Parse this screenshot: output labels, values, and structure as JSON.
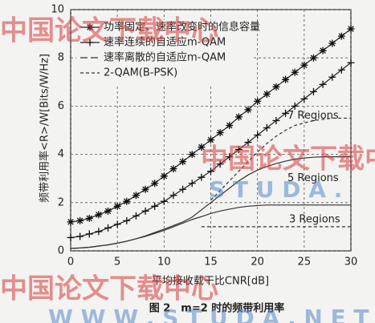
{
  "chart_data": {
    "type": "line",
    "caption": "图 2　m=2 时的频带利用率",
    "xlabel": "平均接收载干比CNR[dB]",
    "ylabel": "频带利用率<R>/W[Bits/W/Hz]",
    "xlim": [
      0,
      30
    ],
    "xticks": [
      0,
      5,
      10,
      15,
      20,
      25,
      30
    ],
    "ylim": [
      0,
      10
    ],
    "yticks": [
      0,
      2,
      4,
      6,
      8,
      10
    ],
    "grid": true,
    "legend": "upper left",
    "x": [
      0,
      1,
      2,
      3,
      4,
      5,
      6,
      7,
      8,
      9,
      10,
      11,
      12,
      13,
      14,
      15,
      16,
      17,
      18,
      19,
      20,
      21,
      22,
      23,
      24,
      25,
      26,
      27,
      28,
      29,
      30
    ],
    "series": [
      {
        "name": "功率固定、速率改变时的信息容量",
        "color": "#222",
        "marker": "star",
        "dash": "solid",
        "values": [
          1.2,
          1.25,
          1.35,
          1.5,
          1.65,
          1.85,
          2.05,
          2.3,
          2.55,
          2.8,
          3.1,
          3.4,
          3.7,
          4.0,
          4.3,
          4.6,
          4.9,
          5.2,
          5.55,
          5.85,
          6.2,
          6.5,
          6.8,
          7.1,
          7.4,
          7.7,
          8.0,
          8.3,
          8.6,
          8.9,
          9.2
        ]
      },
      {
        "name": "速率连续的自适应m-QAM",
        "color": "#222",
        "marker": "plus",
        "dash": "solid",
        "values": [
          0.55,
          0.6,
          0.7,
          0.8,
          0.95,
          1.1,
          1.25,
          1.45,
          1.65,
          1.85,
          2.05,
          2.3,
          2.55,
          2.8,
          3.05,
          3.3,
          3.6,
          3.9,
          4.2,
          4.5,
          4.8,
          5.1,
          5.4,
          5.7,
          6.0,
          6.3,
          6.6,
          6.9,
          7.2,
          7.5,
          7.8
        ]
      },
      {
        "name": "速率离散的自适应m-QAM",
        "color": "#333",
        "marker": "none",
        "dash": "long",
        "curves": [
          {
            "label": "3 Regions",
            "dash": "solid",
            "values": [
              0.1,
              0.12,
              0.15,
              0.2,
              0.25,
              0.32,
              0.4,
              0.5,
              0.6,
              0.72,
              0.85,
              1.0,
              1.15,
              1.3,
              1.42,
              1.55,
              1.65,
              1.73,
              1.8,
              1.85,
              1.88,
              1.9,
              1.9,
              1.9,
              1.9,
              1.9,
              1.9,
              1.9,
              1.9,
              1.9,
              1.9
            ]
          },
          {
            "label": "5 Regions",
            "dash": "solid",
            "values": [
              0.1,
              0.12,
              0.15,
              0.2,
              0.25,
              0.32,
              0.4,
              0.5,
              0.62,
              0.76,
              0.9,
              1.05,
              1.2,
              1.4,
              1.7,
              2.0,
              2.3,
              2.6,
              2.9,
              3.15,
              3.35,
              3.5,
              3.62,
              3.72,
              3.8,
              3.85,
              3.88,
              3.9,
              3.9,
              3.9,
              3.9
            ]
          },
          {
            "label": "7 Regions",
            "dash": "short",
            "values": [
              null,
              null,
              null,
              null,
              null,
              null,
              null,
              null,
              null,
              null,
              null,
              null,
              null,
              null,
              null,
              2.1,
              2.5,
              2.9,
              3.3,
              3.7,
              4.1,
              4.45,
              4.75,
              5.0,
              5.2,
              5.3,
              5.4,
              5.45,
              5.5,
              5.5,
              5.5
            ]
          }
        ]
      },
      {
        "name": "2-QAM(B-PSK)",
        "color": "#333",
        "marker": "none",
        "dash": "short",
        "values": [
          null,
          null,
          null,
          null,
          null,
          null,
          null,
          null,
          null,
          null,
          null,
          null,
          null,
          null,
          1,
          1,
          1,
          1,
          1,
          1,
          1,
          1,
          1,
          1,
          1,
          1,
          1,
          1,
          1,
          1,
          1
        ]
      }
    ]
  },
  "watermarks": [
    "中国论文下载中心",
    "中国论文下载中心",
    "S T U D A .",
    "中国论文下载中心",
    "W W W . S T U D A . N E T"
  ]
}
